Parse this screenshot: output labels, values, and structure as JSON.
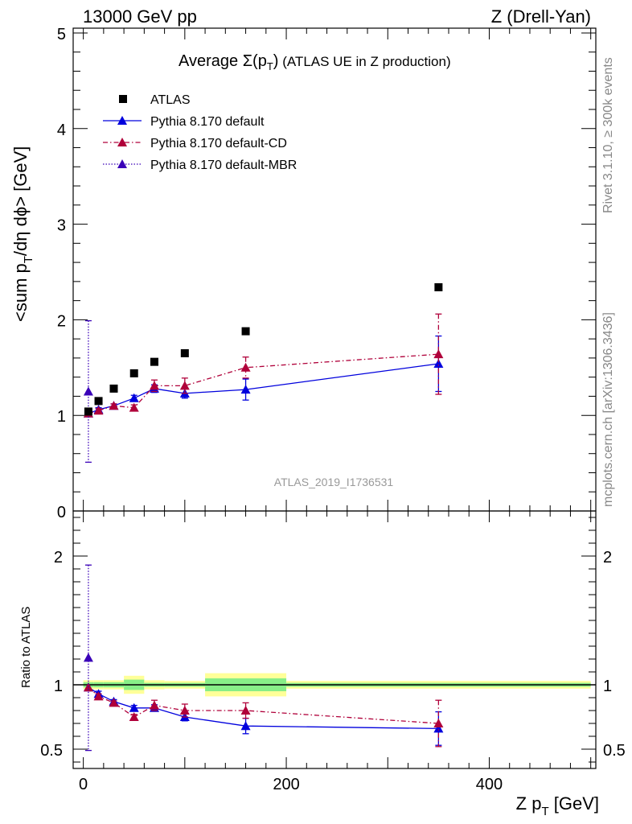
{
  "header": {
    "left": "13000 GeV pp",
    "right": "Z (Drell-Yan)"
  },
  "side_labels": {
    "rivet": "Rivet 3.1.10, ≥ 300k events",
    "mcplots": "mcplots.cern.ch [arXiv:1306.3436]"
  },
  "chart_data": {
    "type": "scatter",
    "title_prefix": "Average ",
    "title_sigma": "Σ(p",
    "title_sub": "T",
    "title_close": ")",
    "title_suffix": " (ATLAS UE in Z production)",
    "analysis_id": "ATLAS_2019_I1736531",
    "xlabel": {
      "main": "Z p",
      "sub": "T",
      "unit": " [GeV]"
    },
    "ylabel": {
      "pre": "<sum p",
      "sub": "T",
      "post": "/dη dϕ> [GeV]"
    },
    "ratio_ylabel": "Ratio to ATLAS",
    "xlim": [
      -10,
      505
    ],
    "ylim": [
      0,
      5.05
    ],
    "ratio_ylim": [
      0.35,
      2.35
    ],
    "x_ticks": [
      0,
      200,
      400
    ],
    "y_ticks": [
      0,
      1,
      2,
      3,
      4,
      5
    ],
    "ratio_y_ticks": [
      0.5,
      1,
      2
    ],
    "data": {
      "name": "ATLAS",
      "x": [
        5,
        15,
        30,
        50,
        70,
        100,
        160,
        350
      ],
      "y": [
        1.04,
        1.15,
        1.28,
        1.44,
        1.56,
        1.65,
        1.88,
        2.34
      ],
      "xerr": [
        5,
        5,
        10,
        10,
        10,
        20,
        40,
        150
      ],
      "ratio_band_inner": [
        0.02,
        0.02,
        0.02,
        0.04,
        0.015,
        0.015,
        0.05,
        0.015
      ],
      "ratio_band_outer": [
        0.035,
        0.035,
        0.035,
        0.07,
        0.035,
        0.03,
        0.09,
        0.03
      ]
    },
    "series": [
      {
        "name": "Pythia 8.170 default",
        "color": "#0000dd",
        "style": "solid",
        "x": [
          5,
          15,
          30,
          50,
          70,
          100,
          160,
          350
        ],
        "y": [
          1.02,
          1.06,
          1.1,
          1.18,
          1.28,
          1.23,
          1.27,
          1.54
        ],
        "yerr": [
          0.0,
          0.02,
          0.02,
          0.03,
          0.04,
          0.05,
          0.11,
          0.29
        ],
        "ratio": [
          0.98,
          0.93,
          0.87,
          0.82,
          0.82,
          0.75,
          0.68,
          0.66
        ],
        "ratio_err": [
          0.0,
          0.02,
          0.015,
          0.02,
          0.025,
          0.03,
          0.06,
          0.13
        ]
      },
      {
        "name": "Pythia 8.170 default-CD",
        "color": "#b0003a",
        "style": "dashdot",
        "x": [
          5,
          15,
          30,
          50,
          70,
          100,
          160,
          350
        ],
        "y": [
          1.02,
          1.05,
          1.1,
          1.08,
          1.31,
          1.31,
          1.5,
          1.64
        ],
        "yerr": [
          0.0,
          0.02,
          0.02,
          0.03,
          0.06,
          0.08,
          0.11,
          0.42
        ],
        "ratio": [
          0.98,
          0.91,
          0.86,
          0.75,
          0.84,
          0.8,
          0.8,
          0.7
        ],
        "ratio_err": [
          0.0,
          0.02,
          0.015,
          0.02,
          0.04,
          0.05,
          0.06,
          0.18
        ]
      },
      {
        "name": "Pythia 8.170 default-MBR",
        "color": "#3a00b8",
        "style": "dotted",
        "x": [
          5
        ],
        "y": [
          1.25
        ],
        "yerr": [
          0.74
        ],
        "ratio": [
          1.21
        ],
        "ratio_err": [
          0.72
        ]
      }
    ],
    "legend_placement": "top-left"
  }
}
